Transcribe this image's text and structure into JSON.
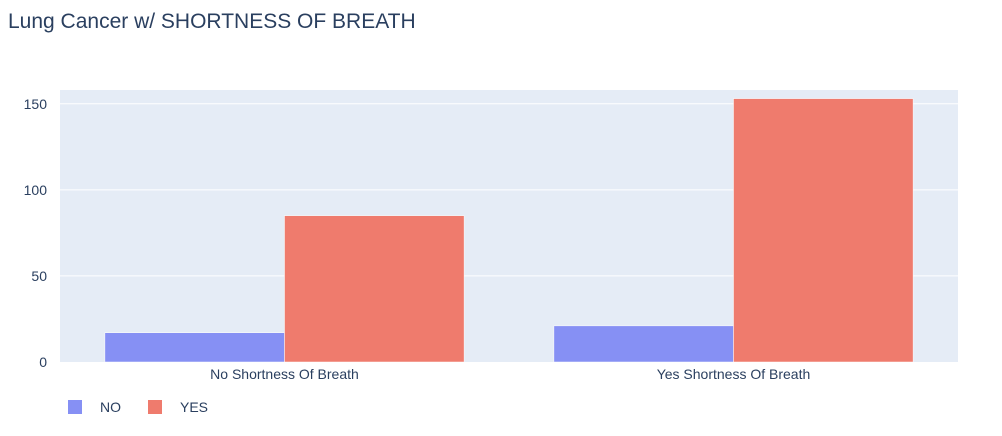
{
  "chart_data": {
    "type": "bar",
    "title": "Lung Cancer w/ SHORTNESS OF BREATH",
    "xlabel": "",
    "ylabel": "",
    "categories": [
      "No Shortness Of Breath",
      "Yes Shortness Of Breath"
    ],
    "series": [
      {
        "name": "NO",
        "values": [
          17,
          21
        ],
        "color": "#8690f4"
      },
      {
        "name": "YES",
        "values": [
          85,
          153
        ],
        "color": "#ef7b6d"
      }
    ],
    "ylim": [
      0,
      158
    ],
    "yticks": [
      0,
      50,
      100,
      150
    ],
    "grid": true,
    "legend_position": "bottom-left",
    "plot_background": "#e5ecf6",
    "text_color": "#2a3f5f"
  }
}
